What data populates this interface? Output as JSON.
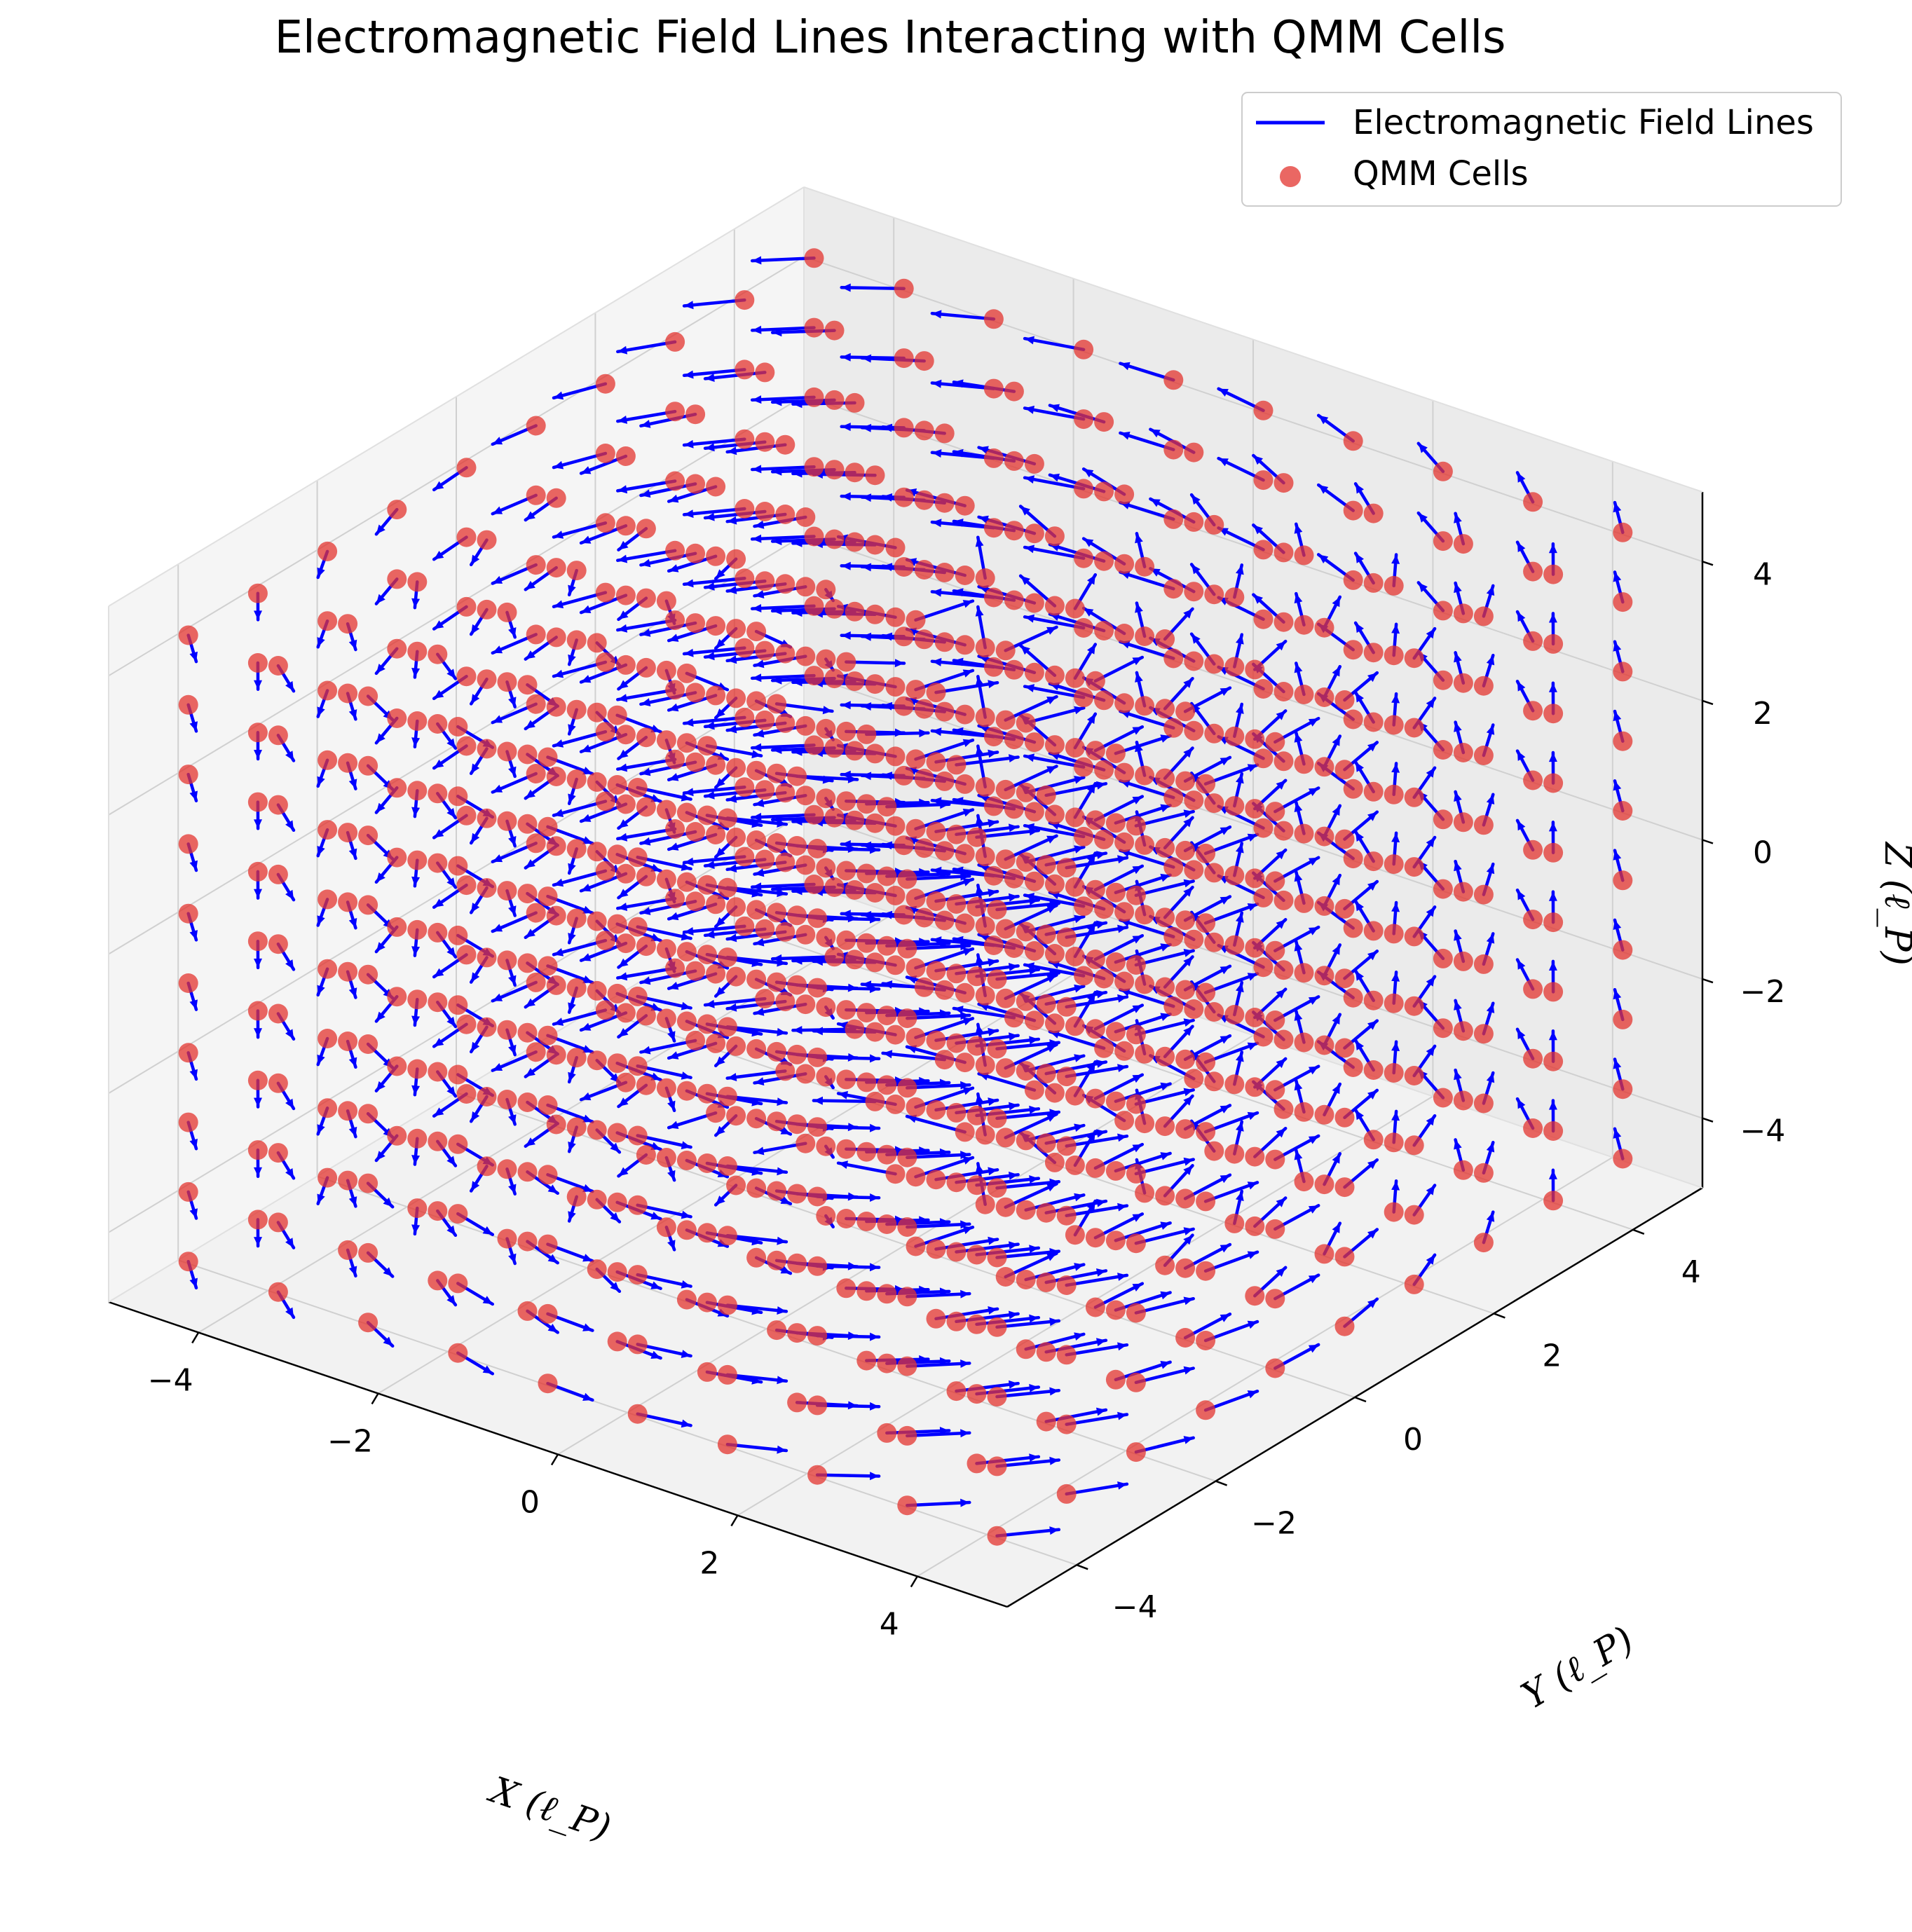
{
  "chart_data": {
    "type": "quiver3d",
    "title": "Electromagnetic Field Lines Interacting with QMM Cells",
    "xlabel": "X (ℓ_P)",
    "ylabel": "Y (ℓ_P)",
    "zlabel": "Z (ℓ_P)",
    "xlim": [
      -5,
      5
    ],
    "ylim": [
      -5,
      5
    ],
    "zlim": [
      -5,
      5
    ],
    "xticks": [
      -4,
      -2,
      0,
      2,
      4
    ],
    "yticks": [
      -4,
      -2,
      0,
      2,
      4
    ],
    "zticks": [
      -4,
      -2,
      0,
      2,
      4
    ],
    "xtick_labels": [
      "−4",
      "−2",
      "0",
      "2",
      "4"
    ],
    "ytick_labels": [
      "−4",
      "−2",
      "0",
      "2",
      "4"
    ],
    "ztick_labels": [
      "−4",
      "−2",
      "0",
      "2",
      "4"
    ],
    "grid": true,
    "legend_position": "top-right",
    "series": [
      {
        "name": "Electromagnetic Field Lines",
        "kind": "quiver",
        "color": "#0000ff",
        "field": "(-y, x, 0.3) normalised",
        "grid_points_per_axis": 10,
        "grid_range": [
          -4.5,
          4.5
        ]
      },
      {
        "name": "QMM Cells",
        "kind": "scatter",
        "color": "#e3342f",
        "opacity": 0.75,
        "grid_points_per_axis": 10,
        "grid_range": [
          -4.5,
          4.5
        ]
      }
    ]
  }
}
